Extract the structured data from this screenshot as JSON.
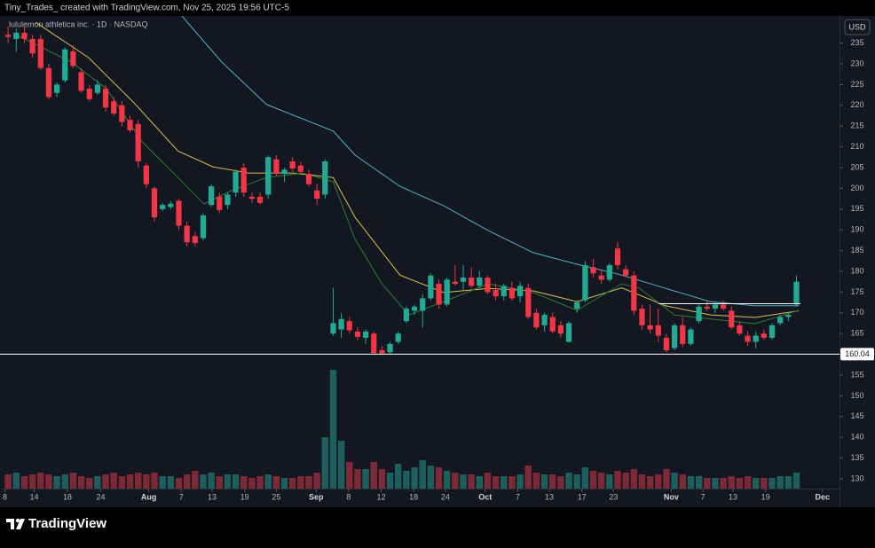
{
  "header": {
    "text": "Tiny_Trades_ created with TradingView.com, Nov 25, 2025 19:56 UTC-5"
  },
  "footer": {
    "brand": "TradingView"
  },
  "chart_data": {
    "type": "candlestick",
    "title": "lululemon athletica inc. · 1D · NASDAQ",
    "currency": "USD",
    "open": [
      237,
      236,
      237.5,
      236,
      236,
      229,
      223,
      226,
      233,
      228,
      224,
      223,
      224,
      221,
      220,
      216.5,
      215.5,
      205.5,
      200,
      195,
      195.5,
      197,
      191,
      188.5,
      188,
      196,
      198,
      196,
      199,
      205,
      198,
      198,
      198.5,
      207,
      203.5,
      206.5,
      205.5,
      203.5,
      199.5,
      198.5,
      165,
      166,
      168,
      165.5,
      164,
      165,
      161,
      160.5,
      163,
      168,
      170.5,
      170.5,
      173.5,
      177,
      172,
      177.5,
      177.5,
      178.5,
      176.5,
      178.5,
      175.5,
      174,
      176,
      174,
      176,
      170,
      167,
      169,
      167,
      163,
      171,
      173,
      181,
      179,
      178,
      185.5,
      180.5,
      179,
      171,
      167,
      167,
      164,
      161.5,
      167,
      162.5,
      168,
      171.5,
      171,
      172,
      170.5,
      167,
      164.5,
      163,
      165,
      164,
      167.5,
      169,
      172
    ],
    "high": [
      239,
      238.5,
      239,
      237,
      237,
      230,
      225.5,
      234,
      234.5,
      229,
      225,
      226,
      225,
      222,
      221,
      217.5,
      216.5,
      206,
      200.5,
      196.5,
      197,
      197.5,
      192,
      189.5,
      194,
      201,
      199,
      199,
      204.5,
      206,
      199,
      199,
      208,
      208,
      205,
      207.5,
      206.5,
      204.5,
      201,
      207,
      176,
      170,
      169,
      166.5,
      166,
      165.5,
      162,
      163,
      165.5,
      171.5,
      172,
      174.5,
      179.5,
      178,
      178.5,
      181.5,
      181.5,
      181,
      180,
      179,
      177,
      177,
      177.5,
      177.5,
      177,
      171,
      170,
      170,
      168,
      168,
      173,
      182.5,
      183,
      180.5,
      182,
      187,
      181.5,
      180,
      172,
      172,
      171,
      165,
      167.5,
      169,
      166.5,
      172,
      173,
      172.5,
      173,
      171.5,
      168,
      165.5,
      165.5,
      166,
      167.5,
      169.5,
      170,
      179
    ],
    "low": [
      235,
      233,
      235,
      231.5,
      228.5,
      221.5,
      222,
      225.5,
      229,
      223,
      221,
      222.5,
      218.5,
      217.5,
      215,
      213.5,
      205,
      200,
      192,
      194.5,
      195,
      190,
      186,
      186,
      187.5,
      195.5,
      194,
      195,
      198,
      198,
      196.5,
      196,
      197.5,
      203,
      201.5,
      204,
      203.5,
      200.5,
      196,
      197.5,
      164.5,
      164,
      165,
      163.5,
      162.5,
      159.8,
      159.8,
      160,
      162.5,
      167.5,
      169.5,
      166.5,
      173,
      171,
      171.5,
      176.5,
      175.5,
      176,
      176,
      174.5,
      173,
      173,
      173,
      172.5,
      168.5,
      166,
      165.5,
      165,
      164,
      162.8,
      170,
      172.5,
      178.5,
      177,
      177.5,
      180.5,
      178.5,
      169.5,
      166,
      165,
      163,
      160.5,
      161,
      161.8,
      162,
      167.5,
      170.5,
      170,
      170.5,
      166,
      164.5,
      162,
      161.5,
      163.5,
      163.5,
      167,
      168,
      171.5
    ],
    "close": [
      236.5,
      237.5,
      236,
      232.5,
      229,
      222,
      225,
      233.5,
      229.5,
      223.5,
      221.5,
      225,
      219.5,
      218,
      216,
      214,
      206.5,
      201,
      193,
      196,
      196.3,
      191,
      187,
      186.8,
      193.5,
      200.5,
      194.8,
      198.5,
      204,
      199,
      197.5,
      196.5,
      207.5,
      203.5,
      204.5,
      204.8,
      204,
      201,
      197.5,
      206.5,
      167.5,
      168.5,
      165.8,
      164.2,
      165.5,
      160.3,
      160.2,
      162.5,
      165,
      171,
      171.5,
      173.5,
      179,
      172,
      178,
      177,
      178.5,
      176.5,
      178.5,
      175,
      174,
      176.5,
      173.5,
      176.5,
      169,
      166.5,
      169.5,
      165.5,
      165,
      167.5,
      172.5,
      181.5,
      179.5,
      178,
      181.5,
      181.5,
      179,
      170.5,
      167,
      166,
      164.5,
      161,
      167,
      162.5,
      166,
      171.5,
      171,
      172,
      171,
      166.5,
      165,
      163,
      164.5,
      164,
      167,
      169,
      169.5,
      177.5
    ],
    "volume": [
      4,
      4.5,
      3.5,
      4,
      4.5,
      4,
      3.5,
      4,
      4.5,
      3.5,
      3,
      3.5,
      4,
      4.5,
      3.5,
      4,
      4.5,
      4,
      4.5,
      3.5,
      3.5,
      3,
      4,
      5,
      4,
      4.5,
      3.5,
      4,
      4,
      3.5,
      3,
      3.5,
      4,
      3.5,
      3,
      3,
      3.5,
      3.5,
      4.5,
      14.5,
      33.5,
      13.5,
      7.5,
      5.5,
      5.5,
      7.5,
      5.5,
      4.5,
      7,
      5,
      6,
      8,
      6.5,
      6,
      5,
      4.5,
      4,
      4,
      3.5,
      4.5,
      3.5,
      3.5,
      3.5,
      4,
      6.5,
      4.5,
      4,
      4,
      3.5,
      4.5,
      4,
      6,
      5,
      4.5,
      4,
      5,
      4.5,
      5.5,
      4,
      3.5,
      4,
      5.5,
      4.5,
      4,
      3.5,
      3.5,
      3,
      3,
      3,
      3.5,
      3,
      3.5,
      3,
      3,
      3,
      3.5,
      3.5,
      4.5
    ],
    "up_color": "#22ab94",
    "down_color": "#f23645",
    "volume_up_color": "#1d5f5c",
    "volume_down_color": "#7d2a36",
    "moving_averages": [
      {
        "color": "#4fb3c5",
        "x": [
          21.4,
          26.3,
          31.8,
          40,
          42.7,
          48.2,
          53.6,
          59.1,
          64.6,
          70,
          75.5,
          80.9,
          86.4,
          91.9,
          97.3
        ],
        "values": [
          241.5,
          230.4,
          220.2,
          213.8,
          208,
          200.5,
          195.8,
          189.8,
          184.5,
          181.7,
          179.1,
          175.9,
          172.7,
          171.7,
          171.7
        ]
      },
      {
        "color": "#d9c24a",
        "x": [
          3.4,
          9.9,
          15.4,
          20.9,
          25.2,
          29.6,
          35.1,
          40,
          42.7,
          48.2,
          53.6,
          59.1,
          64.6,
          70,
          75.5,
          80.9,
          86.4,
          91.9,
          97.3
        ],
        "values": [
          240,
          231.5,
          220.8,
          209,
          205.2,
          203.7,
          203.7,
          202.6,
          193,
          179.1,
          174.9,
          175.9,
          175.3,
          172.7,
          176,
          171.7,
          169.5,
          168.9,
          170.5
        ]
      },
      {
        "color": "#2e7d32",
        "x": [
          1.2,
          7.8,
          12.1,
          16.5,
          20.9,
          24.1,
          27.4,
          31.8,
          36.2,
          40,
          42.7,
          46,
          49.3,
          53.6,
          59.1,
          64.6,
          70,
          75.5,
          77.7,
          82,
          86.4,
          91.9,
          97.3
        ],
        "values": [
          236.8,
          230.4,
          224,
          211.2,
          202.6,
          196.2,
          199.4,
          202.6,
          203.7,
          201.6,
          187.7,
          177,
          169.5,
          172.7,
          177,
          174.9,
          170.6,
          177,
          175.9,
          169.5,
          168.5,
          167.4,
          170.6
        ]
      }
    ],
    "price_lines": [
      {
        "value": 160.04,
        "color": "#ffffff"
      }
    ],
    "segments": [
      {
        "x": [
          80,
          97.5
        ],
        "value": 172.2,
        "color": "#ffffff"
      }
    ],
    "xlim": [
      -1,
      102.3
    ],
    "xticks": [
      {
        "value": -0.4,
        "label": "8"
      },
      {
        "value": 3.2,
        "label": "14"
      },
      {
        "value": 7.3,
        "label": "18"
      },
      {
        "value": 11.4,
        "label": "24"
      },
      {
        "value": 17.3,
        "label": "Aug"
      },
      {
        "value": 21.3,
        "label": "7"
      },
      {
        "value": 25.1,
        "label": "13"
      },
      {
        "value": 29.1,
        "label": "19"
      },
      {
        "value": 33,
        "label": "25"
      },
      {
        "value": 37.9,
        "label": "Sep"
      },
      {
        "value": 41.9,
        "label": "8"
      },
      {
        "value": 45.9,
        "label": "12"
      },
      {
        "value": 49.9,
        "label": "18"
      },
      {
        "value": 53.8,
        "label": "24"
      },
      {
        "value": 58.7,
        "label": "Oct"
      },
      {
        "value": 62.7,
        "label": "7"
      },
      {
        "value": 66.6,
        "label": "13"
      },
      {
        "value": 70.6,
        "label": "17"
      },
      {
        "value": 74.5,
        "label": "23"
      },
      {
        "value": 81.6,
        "label": "Nov"
      },
      {
        "value": 85.5,
        "label": "7"
      },
      {
        "value": 89.2,
        "label": "13"
      },
      {
        "value": 93.2,
        "label": "19"
      },
      {
        "value": 100.2,
        "label": "Dec"
      }
    ],
    "ylim": [
      127.65,
      241.54
    ],
    "yticks": [
      130,
      135,
      140,
      145,
      150,
      155,
      160,
      165,
      170,
      175,
      180,
      185,
      190,
      195,
      200,
      205,
      210,
      215,
      220,
      225,
      230,
      235
    ],
    "vlim": [
      0,
      40
    ]
  }
}
